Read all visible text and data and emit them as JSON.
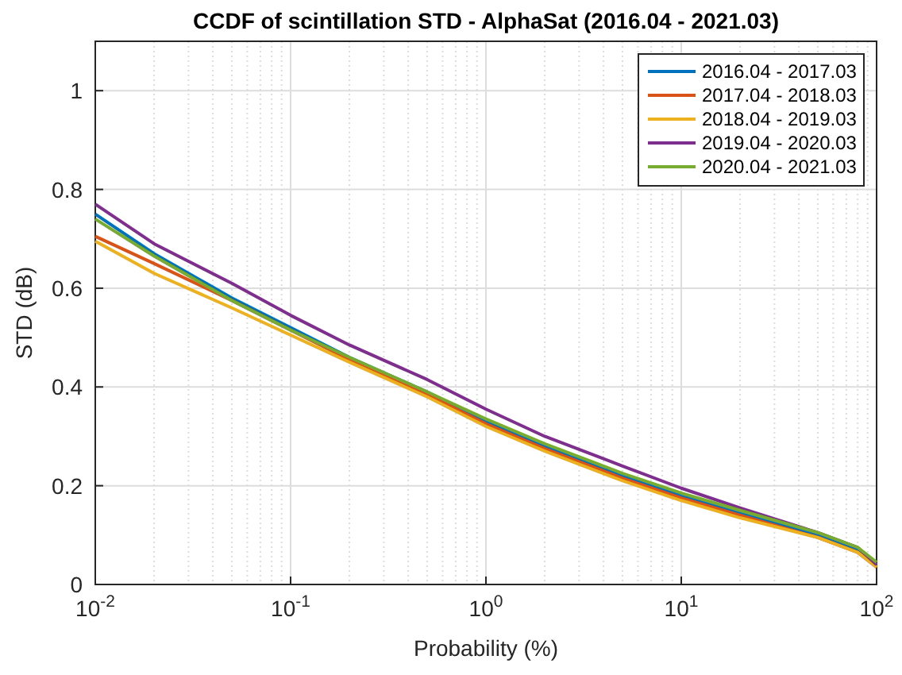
{
  "chart_data": {
    "type": "line",
    "title": "CCDF of scintillation STD - AlphaSat (2016.04 - 2021.03)",
    "xlabel": "Probability (%)",
    "ylabel": "STD (dB)",
    "log": "x",
    "grid": true,
    "legend": "top right",
    "line_style": "solid",
    "x": [
      0.01,
      0.02,
      0.05,
      0.1,
      0.2,
      0.5,
      1,
      2,
      5,
      10,
      20,
      50,
      80,
      100
    ],
    "xlim": [
      0.01,
      100
    ],
    "xticks": [
      {
        "value": 0.01,
        "label": "10$^{-2}$"
      },
      {
        "value": 0.1,
        "label": "10$^{-1}$"
      },
      {
        "value": 1,
        "label": "10$^{0}$"
      },
      {
        "value": 10,
        "label": "10$^{1}$"
      },
      {
        "value": 100,
        "label": "10$^{2}$"
      }
    ],
    "ylim": [
      0,
      1.1
    ],
    "yticks": [
      0,
      0.2,
      0.4,
      0.6,
      0.8,
      1
    ],
    "series": [
      {
        "name": "2016.04 - 2017.03",
        "color": "#0072bd",
        "values": [
          0.75,
          0.67,
          0.58,
          0.52,
          0.46,
          0.39,
          0.33,
          0.28,
          0.22,
          0.18,
          0.145,
          0.1,
          0.07,
          0.04
        ]
      },
      {
        "name": "2017.04 - 2018.03",
        "color": "#d95319",
        "values": [
          0.705,
          0.65,
          0.575,
          0.515,
          0.455,
          0.385,
          0.325,
          0.275,
          0.215,
          0.175,
          0.14,
          0.095,
          0.065,
          0.035
        ]
      },
      {
        "name": "2018.04 - 2019.03",
        "color": "#edb120",
        "values": [
          0.695,
          0.63,
          0.56,
          0.505,
          0.45,
          0.38,
          0.32,
          0.27,
          0.21,
          0.17,
          0.135,
          0.095,
          0.065,
          0.035
        ]
      },
      {
        "name": "2019.04 - 2020.03",
        "color": "#7e2f8e",
        "values": [
          0.77,
          0.69,
          0.61,
          0.545,
          0.485,
          0.415,
          0.355,
          0.3,
          0.24,
          0.195,
          0.155,
          0.105,
          0.075,
          0.04
        ]
      },
      {
        "name": "2020.04 - 2021.03",
        "color": "#77ac30",
        "values": [
          0.74,
          0.665,
          0.575,
          0.515,
          0.46,
          0.39,
          0.335,
          0.285,
          0.225,
          0.185,
          0.15,
          0.105,
          0.075,
          0.045
        ]
      }
    ]
  }
}
